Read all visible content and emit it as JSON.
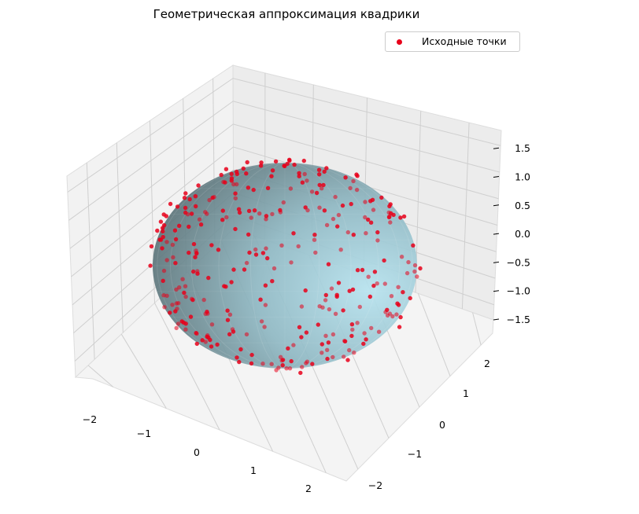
{
  "chart_data": {
    "type": "scatter",
    "title": "Геометрическая аппроксимация квадрики",
    "legend": {
      "placement": "top-right",
      "entries": [
        "Исходные точки"
      ]
    },
    "series": [
      {
        "name": "Исходные точки",
        "color": "#e8001a",
        "marker": "circle",
        "point_count": 330
      }
    ],
    "surface": {
      "kind": "ellipsoid",
      "color": "#a9d3df",
      "center": [
        0,
        0,
        0
      ],
      "radii": [
        1.6,
        1.6,
        1.5
      ]
    },
    "axes": {
      "x": {
        "ticks": [
          "−2",
          "−1",
          "0",
          "1",
          "2"
        ],
        "range": [
          -2.3,
          2.3
        ]
      },
      "y": {
        "ticks": [
          "−2",
          "−1",
          "0",
          "1",
          "2"
        ],
        "range": [
          -2.3,
          2.3
        ]
      },
      "z": {
        "ticks": [
          "−1.5",
          "−1.0",
          "−0.5",
          "0.0",
          "0.5",
          "1.0",
          "1.5"
        ],
        "range": [
          -1.6,
          1.6
        ]
      }
    },
    "grid": true
  }
}
